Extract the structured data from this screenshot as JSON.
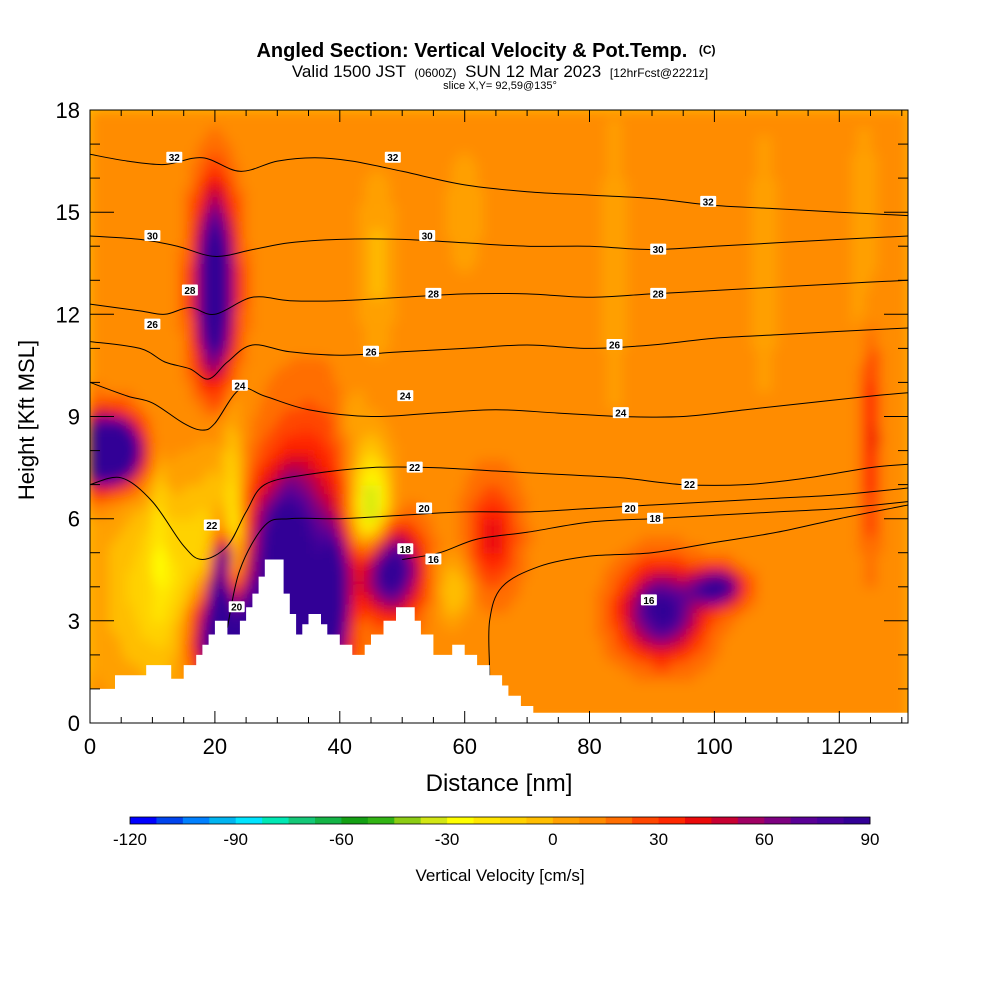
{
  "chart_data": {
    "type": "heatmap",
    "title": "Angled Section: Vertical Velocity & Pot.Temp.",
    "title_unit": "(C)",
    "subtitle_main_a": "Valid 1500 JST",
    "subtitle_small_a": "(0600Z)",
    "subtitle_main_b": "SUN 12 Mar 2023",
    "subtitle_small_b": "[12hrFcst@2221z]",
    "slice_label": "slice X,Y= 92,59@135°",
    "xlabel": "Distance [nm]",
    "ylabel": "Height [Kft MSL]",
    "xlim": [
      0,
      131
    ],
    "ylim": [
      0,
      18
    ],
    "x_ticks": [
      0,
      20,
      40,
      60,
      80,
      100,
      120
    ],
    "y_ticks": [
      0,
      3,
      6,
      9,
      12,
      15,
      18
    ],
    "colorbar": {
      "label": "Vertical Velocity [cm/s]",
      "ticks": [
        -120,
        -90,
        -60,
        -30,
        0,
        30,
        60,
        90
      ],
      "min": -120,
      "max": 90,
      "step": 7.5,
      "colors": [
        "#0000ff",
        "#0044ee",
        "#0080ff",
        "#00b4f0",
        "#00e4ff",
        "#00e8b4",
        "#14c878",
        "#14b446",
        "#14a014",
        "#32b414",
        "#8ccc14",
        "#d2e614",
        "#ffff00",
        "#ffe600",
        "#ffd200",
        "#ffbe00",
        "#ffa000",
        "#ff8c00",
        "#ff6e00",
        "#ff4600",
        "#ff2800",
        "#eb0a0a",
        "#c80032",
        "#a00064",
        "#7d0080",
        "#5a0096",
        "#46009a",
        "#320096"
      ]
    },
    "theta_contours": [
      {
        "value": 16,
        "points": [
          [
            64,
            0.3
          ],
          [
            64,
            1.5
          ],
          [
            64,
            3.0
          ],
          [
            66,
            4.0
          ],
          [
            72,
            4.6
          ],
          [
            80,
            4.9
          ],
          [
            90,
            5.0
          ],
          [
            100,
            5.3
          ],
          [
            110,
            5.6
          ],
          [
            120,
            6.0
          ],
          [
            131,
            6.4
          ]
        ]
      },
      {
        "value": 18,
        "points": [
          [
            50,
            4.8
          ],
          [
            56,
            5.0
          ],
          [
            62,
            5.4
          ],
          [
            70,
            5.6
          ],
          [
            80,
            5.9
          ],
          [
            90,
            6.0
          ],
          [
            100,
            6.1
          ],
          [
            110,
            6.2
          ],
          [
            120,
            6.3
          ],
          [
            131,
            6.5
          ]
        ]
      },
      {
        "value": 20,
        "points": [
          [
            22,
            2.8
          ],
          [
            24,
            4.5
          ],
          [
            28,
            5.8
          ],
          [
            32,
            6.0
          ],
          [
            40,
            6.0
          ],
          [
            50,
            6.1
          ],
          [
            60,
            6.2
          ],
          [
            70,
            6.2
          ],
          [
            80,
            6.3
          ],
          [
            90,
            6.4
          ],
          [
            100,
            6.5
          ],
          [
            110,
            6.6
          ],
          [
            120,
            6.7
          ],
          [
            131,
            6.9
          ]
        ]
      },
      {
        "value": 22,
        "points": [
          [
            0,
            7.0
          ],
          [
            5,
            7.2
          ],
          [
            10,
            6.5
          ],
          [
            15,
            5.2
          ],
          [
            18,
            4.8
          ],
          [
            22,
            5.2
          ],
          [
            25,
            6.2
          ],
          [
            28,
            7.0
          ],
          [
            35,
            7.3
          ],
          [
            45,
            7.5
          ],
          [
            55,
            7.5
          ],
          [
            65,
            7.4
          ],
          [
            75,
            7.3
          ],
          [
            85,
            7.2
          ],
          [
            95,
            7.0
          ],
          [
            105,
            7.0
          ],
          [
            115,
            7.2
          ],
          [
            125,
            7.5
          ],
          [
            131,
            7.6
          ]
        ]
      },
      {
        "value": 24,
        "points": [
          [
            0,
            10.0
          ],
          [
            6,
            9.6
          ],
          [
            10,
            9.4
          ],
          [
            15,
            8.8
          ],
          [
            18,
            8.6
          ],
          [
            20,
            8.8
          ],
          [
            24,
            9.8
          ],
          [
            28,
            9.6
          ],
          [
            35,
            9.2
          ],
          [
            45,
            9.0
          ],
          [
            55,
            9.1
          ],
          [
            65,
            9.2
          ],
          [
            75,
            9.1
          ],
          [
            85,
            9.0
          ],
          [
            95,
            9.0
          ],
          [
            105,
            9.2
          ],
          [
            115,
            9.4
          ],
          [
            125,
            9.6
          ],
          [
            131,
            9.7
          ]
        ]
      },
      {
        "value": 26,
        "points": [
          [
            0,
            11.2
          ],
          [
            8,
            11.0
          ],
          [
            12,
            10.6
          ],
          [
            16,
            10.4
          ],
          [
            19,
            10.1
          ],
          [
            22,
            10.6
          ],
          [
            26,
            11.1
          ],
          [
            32,
            10.9
          ],
          [
            40,
            10.8
          ],
          [
            50,
            10.9
          ],
          [
            60,
            11.0
          ],
          [
            70,
            11.1
          ],
          [
            80,
            11.0
          ],
          [
            90,
            11.1
          ],
          [
            100,
            11.3
          ],
          [
            110,
            11.4
          ],
          [
            120,
            11.5
          ],
          [
            131,
            11.6
          ]
        ]
      },
      {
        "value": 28,
        "points": [
          [
            0,
            12.3
          ],
          [
            8,
            12.1
          ],
          [
            12,
            12.0
          ],
          [
            16,
            12.2
          ],
          [
            20,
            12.0
          ],
          [
            26,
            12.5
          ],
          [
            32,
            12.4
          ],
          [
            40,
            12.4
          ],
          [
            50,
            12.5
          ],
          [
            60,
            12.6
          ],
          [
            70,
            12.6
          ],
          [
            80,
            12.5
          ],
          [
            90,
            12.6
          ],
          [
            100,
            12.7
          ],
          [
            110,
            12.8
          ],
          [
            120,
            12.9
          ],
          [
            131,
            13.0
          ]
        ]
      },
      {
        "value": 30,
        "points": [
          [
            0,
            14.3
          ],
          [
            8,
            14.2
          ],
          [
            14,
            14.0
          ],
          [
            20,
            13.7
          ],
          [
            26,
            13.9
          ],
          [
            32,
            14.1
          ],
          [
            40,
            14.2
          ],
          [
            50,
            14.2
          ],
          [
            60,
            14.1
          ],
          [
            70,
            14.0
          ],
          [
            80,
            14.0
          ],
          [
            90,
            13.9
          ],
          [
            100,
            14.0
          ],
          [
            110,
            14.1
          ],
          [
            120,
            14.2
          ],
          [
            131,
            14.3
          ]
        ]
      },
      {
        "value": 32,
        "points": [
          [
            0,
            16.7
          ],
          [
            6,
            16.5
          ],
          [
            12,
            16.4
          ],
          [
            18,
            16.6
          ],
          [
            24,
            16.2
          ],
          [
            30,
            16.5
          ],
          [
            36,
            16.6
          ],
          [
            42,
            16.5
          ],
          [
            50,
            16.2
          ],
          [
            60,
            15.8
          ],
          [
            70,
            15.6
          ],
          [
            80,
            15.5
          ],
          [
            90,
            15.4
          ],
          [
            100,
            15.2
          ],
          [
            110,
            15.1
          ],
          [
            120,
            15.0
          ],
          [
            131,
            14.9
          ]
        ]
      }
    ],
    "contour_labels": [
      {
        "text": "32",
        "x": 13.5,
        "y": 16.6
      },
      {
        "text": "32",
        "x": 48.5,
        "y": 16.6
      },
      {
        "text": "32",
        "x": 99,
        "y": 15.3
      },
      {
        "text": "30",
        "x": 10,
        "y": 14.3
      },
      {
        "text": "30",
        "x": 54,
        "y": 14.3
      },
      {
        "text": "30",
        "x": 91,
        "y": 13.9
      },
      {
        "text": "28",
        "x": 16,
        "y": 12.7
      },
      {
        "text": "28",
        "x": 55,
        "y": 12.6
      },
      {
        "text": "28",
        "x": 91,
        "y": 12.6
      },
      {
        "text": "26",
        "x": 10,
        "y": 11.7
      },
      {
        "text": "26",
        "x": 45,
        "y": 10.9
      },
      {
        "text": "26",
        "x": 84,
        "y": 11.1
      },
      {
        "text": "24",
        "x": 24,
        "y": 9.9
      },
      {
        "text": "24",
        "x": 50.5,
        "y": 9.6
      },
      {
        "text": "24",
        "x": 85,
        "y": 9.1
      },
      {
        "text": "22",
        "x": 19.5,
        "y": 5.8
      },
      {
        "text": "22",
        "x": 52,
        "y": 7.5
      },
      {
        "text": "22",
        "x": 96,
        "y": 7.0
      },
      {
        "text": "20",
        "x": 53.5,
        "y": 6.3
      },
      {
        "text": "20",
        "x": 86.5,
        "y": 6.3
      },
      {
        "text": "20",
        "x": 23.5,
        "y": 3.4
      },
      {
        "text": "18",
        "x": 90.5,
        "y": 6.0
      },
      {
        "text": "18",
        "x": 50.5,
        "y": 5.1
      },
      {
        "text": "16",
        "x": 55,
        "y": 4.8
      },
      {
        "text": "16",
        "x": 89.5,
        "y": 3.6
      }
    ],
    "terrain": [
      [
        0,
        1.0
      ],
      [
        4,
        1.0
      ],
      [
        4,
        1.4
      ],
      [
        9,
        1.4
      ],
      [
        9,
        1.7
      ],
      [
        13,
        1.7
      ],
      [
        13,
        1.3
      ],
      [
        15,
        1.3
      ],
      [
        15,
        1.7
      ],
      [
        17,
        1.7
      ],
      [
        17,
        2.0
      ],
      [
        18,
        2.0
      ],
      [
        18,
        2.3
      ],
      [
        19,
        2.3
      ],
      [
        19,
        2.6
      ],
      [
        20,
        2.6
      ],
      [
        20,
        3.0
      ],
      [
        22,
        3.0
      ],
      [
        22,
        2.6
      ],
      [
        24,
        2.6
      ],
      [
        24,
        3.0
      ],
      [
        25,
        3.0
      ],
      [
        25,
        3.4
      ],
      [
        26,
        3.4
      ],
      [
        26,
        3.8
      ],
      [
        27,
        3.8
      ],
      [
        27,
        4.3
      ],
      [
        28,
        4.3
      ],
      [
        28,
        4.8
      ],
      [
        31,
        4.8
      ],
      [
        31,
        3.8
      ],
      [
        32,
        3.8
      ],
      [
        32,
        3.2
      ],
      [
        33,
        3.2
      ],
      [
        33,
        2.6
      ],
      [
        34,
        2.6
      ],
      [
        34,
        2.9
      ],
      [
        35,
        2.9
      ],
      [
        35,
        3.2
      ],
      [
        37,
        3.2
      ],
      [
        37,
        2.9
      ],
      [
        38,
        2.9
      ],
      [
        38,
        2.6
      ],
      [
        40,
        2.6
      ],
      [
        40,
        2.3
      ],
      [
        42,
        2.3
      ],
      [
        42,
        2.0
      ],
      [
        44,
        2.0
      ],
      [
        44,
        2.3
      ],
      [
        45,
        2.3
      ],
      [
        45,
        2.6
      ],
      [
        47,
        2.6
      ],
      [
        47,
        3.0
      ],
      [
        49,
        3.0
      ],
      [
        49,
        3.4
      ],
      [
        52,
        3.4
      ],
      [
        52,
        3.0
      ],
      [
        53,
        3.0
      ],
      [
        53,
        2.6
      ],
      [
        55,
        2.6
      ],
      [
        55,
        2.0
      ],
      [
        58,
        2.0
      ],
      [
        58,
        2.3
      ],
      [
        60,
        2.3
      ],
      [
        60,
        2.0
      ],
      [
        62,
        2.0
      ],
      [
        62,
        1.7
      ],
      [
        64,
        1.7
      ],
      [
        64,
        1.4
      ],
      [
        66,
        1.4
      ],
      [
        66,
        1.1
      ],
      [
        67,
        1.1
      ],
      [
        67,
        0.8
      ],
      [
        69,
        0.8
      ],
      [
        69,
        0.5
      ],
      [
        71,
        0.5
      ],
      [
        71,
        0.3
      ],
      [
        131,
        0.3
      ]
    ]
  }
}
